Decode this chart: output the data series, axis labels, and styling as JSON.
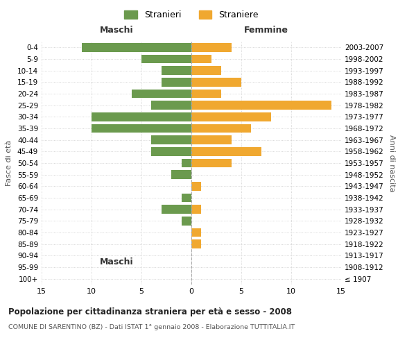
{
  "age_groups": [
    "100+",
    "95-99",
    "90-94",
    "85-89",
    "80-84",
    "75-79",
    "70-74",
    "65-69",
    "60-64",
    "55-59",
    "50-54",
    "45-49",
    "40-44",
    "35-39",
    "30-34",
    "25-29",
    "20-24",
    "15-19",
    "10-14",
    "5-9",
    "0-4"
  ],
  "birth_years": [
    "≤ 1907",
    "1908-1912",
    "1913-1917",
    "1918-1922",
    "1923-1927",
    "1928-1932",
    "1933-1937",
    "1938-1942",
    "1943-1947",
    "1948-1952",
    "1953-1957",
    "1958-1962",
    "1963-1967",
    "1968-1972",
    "1973-1977",
    "1978-1982",
    "1983-1987",
    "1988-1992",
    "1993-1997",
    "1998-2002",
    "2003-2007"
  ],
  "maschi": [
    0,
    0,
    0,
    0,
    0,
    1,
    3,
    1,
    0,
    2,
    1,
    4,
    4,
    10,
    10,
    4,
    6,
    3,
    3,
    5,
    11
  ],
  "femmine": [
    0,
    0,
    0,
    1,
    1,
    0,
    1,
    0,
    1,
    0,
    4,
    7,
    4,
    6,
    8,
    14,
    3,
    5,
    3,
    2,
    4
  ],
  "color_maschi": "#6b9a4e",
  "color_femmine": "#f0a830",
  "title_main": "Popolazione per cittadinanza straniera per età e sesso - 2008",
  "title_sub": "COMUNE DI SARENTINO (BZ) - Dati ISTAT 1° gennaio 2008 - Elaborazione TUTTITALIA.IT",
  "xlabel_left": "Maschi",
  "xlabel_right": "Femmine",
  "ylabel_left": "Fasce di età",
  "ylabel_right": "Anni di nascita",
  "legend_maschi": "Stranieri",
  "legend_femmine": "Straniere",
  "xlim": 15,
  "background_color": "#ffffff",
  "grid_color": "#cccccc"
}
